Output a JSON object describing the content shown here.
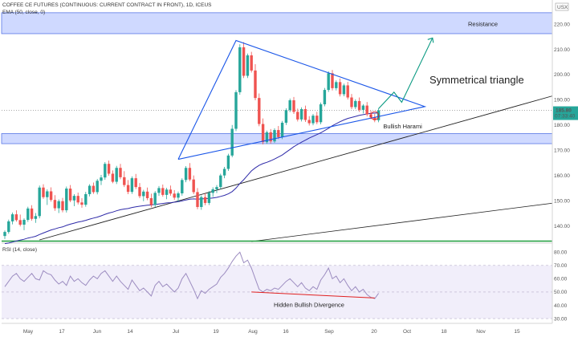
{
  "header": {
    "symbol_title": "COFFEE CE FUTURES (CONTINUOUS: CURRENT CONTRACT IN FRONT), 1D, ICEUS",
    "ema_label": "EMA (50, close, 0)",
    "rsi_label": "RSI (14, close)",
    "currency": "USX"
  },
  "annotations": {
    "resistance": "Resistance",
    "pattern": "Symmetrical triangle",
    "harami": "Bullish Harami",
    "divergence": "Hidden Bullish Divergence"
  },
  "price_badge": {
    "price": "185.80",
    "countdown": "07:33:40"
  },
  "colors": {
    "up": "#26a69a",
    "down": "#ef5350",
    "ema": "#2e2aa8",
    "trend": "#1a56e8",
    "zone": "#cfd9ff",
    "support": "#1e9e3c",
    "projection": "#089981",
    "rsi_line": "#9c8cc0",
    "rsi_band": "#f1eefa",
    "divergence": "#e02020"
  },
  "chart_data": [
    {
      "type": "candlestick",
      "title": "COFFEE CE FUTURES (CONTINUOUS: CURRENT CONTRACT IN FRONT), 1D, ICEUS",
      "ylabel": "USX",
      "y_ticks": [
        140,
        150,
        160,
        170,
        180,
        190,
        200,
        210,
        220
      ],
      "ylim": [
        133.5,
        227
      ],
      "x_ticks": [
        "May",
        "17",
        "Jun",
        "14",
        "Jul",
        "19",
        "Aug",
        "16",
        "Sep",
        "20",
        "Oct",
        "18",
        "Nov",
        "15"
      ],
      "last_price": 185.8,
      "candles": [
        {
          "o": 136.0,
          "h": 138.2,
          "l": 134.8,
          "c": 137.6
        },
        {
          "o": 137.6,
          "h": 142.5,
          "l": 136.9,
          "c": 141.8
        },
        {
          "o": 141.8,
          "h": 145.3,
          "l": 140.6,
          "c": 144.6
        },
        {
          "o": 144.6,
          "h": 146.2,
          "l": 141.7,
          "c": 142.3
        },
        {
          "o": 142.3,
          "h": 144.5,
          "l": 139.8,
          "c": 140.5
        },
        {
          "o": 140.5,
          "h": 143.0,
          "l": 138.3,
          "c": 142.4
        },
        {
          "o": 142.4,
          "h": 147.6,
          "l": 141.6,
          "c": 146.9
        },
        {
          "o": 146.9,
          "h": 148.2,
          "l": 142.1,
          "c": 142.8
        },
        {
          "o": 142.8,
          "h": 145.1,
          "l": 141.2,
          "c": 143.9
        },
        {
          "o": 143.9,
          "h": 156.0,
          "l": 143.0,
          "c": 155.2
        },
        {
          "o": 155.2,
          "h": 156.5,
          "l": 150.7,
          "c": 151.4
        },
        {
          "o": 151.4,
          "h": 154.5,
          "l": 148.3,
          "c": 153.7
        },
        {
          "o": 153.7,
          "h": 155.3,
          "l": 149.6,
          "c": 150.3
        },
        {
          "o": 150.3,
          "h": 152.2,
          "l": 146.0,
          "c": 147.0
        },
        {
          "o": 147.0,
          "h": 150.5,
          "l": 145.1,
          "c": 149.8
        },
        {
          "o": 149.8,
          "h": 151.1,
          "l": 145.4,
          "c": 146.2
        },
        {
          "o": 146.2,
          "h": 155.6,
          "l": 145.3,
          "c": 154.8
        },
        {
          "o": 154.8,
          "h": 156.2,
          "l": 149.4,
          "c": 150.1
        },
        {
          "o": 150.1,
          "h": 152.6,
          "l": 147.8,
          "c": 151.9
        },
        {
          "o": 151.9,
          "h": 153.2,
          "l": 148.5,
          "c": 149.3
        },
        {
          "o": 149.3,
          "h": 151.0,
          "l": 147.2,
          "c": 148.4
        },
        {
          "o": 148.4,
          "h": 153.5,
          "l": 147.6,
          "c": 152.6
        },
        {
          "o": 152.6,
          "h": 156.5,
          "l": 151.7,
          "c": 155.9
        },
        {
          "o": 155.9,
          "h": 157.2,
          "l": 152.7,
          "c": 153.4
        },
        {
          "o": 153.4,
          "h": 158.6,
          "l": 152.5,
          "c": 157.9
        },
        {
          "o": 157.9,
          "h": 160.2,
          "l": 156.2,
          "c": 159.2
        },
        {
          "o": 159.2,
          "h": 165.3,
          "l": 158.3,
          "c": 164.6
        },
        {
          "o": 164.6,
          "h": 165.9,
          "l": 159.9,
          "c": 160.7
        },
        {
          "o": 160.7,
          "h": 162.0,
          "l": 156.9,
          "c": 157.5
        },
        {
          "o": 157.5,
          "h": 163.8,
          "l": 156.6,
          "c": 163.0
        },
        {
          "o": 163.0,
          "h": 164.6,
          "l": 158.5,
          "c": 159.3
        },
        {
          "o": 159.3,
          "h": 161.7,
          "l": 155.4,
          "c": 156.2
        },
        {
          "o": 156.2,
          "h": 158.2,
          "l": 152.6,
          "c": 153.5
        },
        {
          "o": 153.5,
          "h": 159.6,
          "l": 152.7,
          "c": 158.9
        },
        {
          "o": 158.9,
          "h": 160.6,
          "l": 154.6,
          "c": 155.4
        },
        {
          "o": 155.4,
          "h": 157.0,
          "l": 151.0,
          "c": 151.8
        },
        {
          "o": 151.8,
          "h": 154.3,
          "l": 149.8,
          "c": 153.6
        },
        {
          "o": 153.6,
          "h": 155.2,
          "l": 150.2,
          "c": 151.0
        },
        {
          "o": 151.0,
          "h": 152.8,
          "l": 147.4,
          "c": 148.3
        },
        {
          "o": 148.3,
          "h": 153.8,
          "l": 147.5,
          "c": 153.1
        },
        {
          "o": 153.1,
          "h": 155.8,
          "l": 151.9,
          "c": 155.0
        },
        {
          "o": 155.0,
          "h": 156.4,
          "l": 151.6,
          "c": 152.3
        },
        {
          "o": 152.3,
          "h": 155.1,
          "l": 150.6,
          "c": 154.4
        },
        {
          "o": 154.4,
          "h": 156.0,
          "l": 152.0,
          "c": 152.8
        },
        {
          "o": 152.8,
          "h": 154.2,
          "l": 150.3,
          "c": 151.2
        },
        {
          "o": 151.2,
          "h": 153.6,
          "l": 149.6,
          "c": 152.9
        },
        {
          "o": 152.9,
          "h": 158.9,
          "l": 152.0,
          "c": 158.2
        },
        {
          "o": 158.2,
          "h": 163.7,
          "l": 157.3,
          "c": 163.0
        },
        {
          "o": 163.0,
          "h": 164.9,
          "l": 157.7,
          "c": 158.4
        },
        {
          "o": 158.4,
          "h": 160.0,
          "l": 152.6,
          "c": 153.4
        },
        {
          "o": 153.4,
          "h": 155.0,
          "l": 146.6,
          "c": 147.5
        },
        {
          "o": 147.5,
          "h": 152.1,
          "l": 146.4,
          "c": 151.4
        },
        {
          "o": 151.4,
          "h": 152.9,
          "l": 148.2,
          "c": 149.1
        },
        {
          "o": 149.1,
          "h": 153.8,
          "l": 148.3,
          "c": 153.1
        },
        {
          "o": 153.1,
          "h": 155.3,
          "l": 151.5,
          "c": 154.5
        },
        {
          "o": 154.5,
          "h": 156.2,
          "l": 153.0,
          "c": 155.4
        },
        {
          "o": 155.4,
          "h": 160.7,
          "l": 154.6,
          "c": 160.0
        },
        {
          "o": 160.0,
          "h": 163.4,
          "l": 158.9,
          "c": 162.6
        },
        {
          "o": 162.6,
          "h": 168.6,
          "l": 161.8,
          "c": 167.9
        },
        {
          "o": 167.9,
          "h": 180.0,
          "l": 167.2,
          "c": 178.5
        },
        {
          "o": 178.5,
          "h": 193.8,
          "l": 177.6,
          "c": 193.0
        },
        {
          "o": 193.0,
          "h": 212.0,
          "l": 192.0,
          "c": 210.8
        },
        {
          "o": 210.8,
          "h": 212.8,
          "l": 198.6,
          "c": 199.5
        },
        {
          "o": 199.5,
          "h": 208.3,
          "l": 198.6,
          "c": 207.6
        },
        {
          "o": 207.6,
          "h": 209.0,
          "l": 200.8,
          "c": 201.6
        },
        {
          "o": 201.6,
          "h": 204.1,
          "l": 189.8,
          "c": 190.7
        },
        {
          "o": 190.7,
          "h": 192.5,
          "l": 179.5,
          "c": 180.4
        },
        {
          "o": 180.4,
          "h": 182.6,
          "l": 172.3,
          "c": 173.2
        },
        {
          "o": 173.2,
          "h": 177.8,
          "l": 172.5,
          "c": 177.1
        },
        {
          "o": 177.1,
          "h": 178.4,
          "l": 172.6,
          "c": 173.5
        },
        {
          "o": 173.5,
          "h": 178.7,
          "l": 172.9,
          "c": 178.0
        },
        {
          "o": 178.0,
          "h": 179.6,
          "l": 174.4,
          "c": 175.2
        },
        {
          "o": 175.2,
          "h": 181.6,
          "l": 174.4,
          "c": 180.9
        },
        {
          "o": 180.9,
          "h": 186.6,
          "l": 180.0,
          "c": 185.9
        },
        {
          "o": 185.9,
          "h": 190.5,
          "l": 185.1,
          "c": 189.8
        },
        {
          "o": 189.8,
          "h": 191.1,
          "l": 184.4,
          "c": 185.2
        },
        {
          "o": 185.2,
          "h": 186.5,
          "l": 181.4,
          "c": 182.2
        },
        {
          "o": 182.2,
          "h": 187.0,
          "l": 181.4,
          "c": 186.3
        },
        {
          "o": 186.3,
          "h": 187.7,
          "l": 181.2,
          "c": 182.0
        },
        {
          "o": 182.0,
          "h": 183.5,
          "l": 179.8,
          "c": 180.7
        },
        {
          "o": 180.7,
          "h": 184.4,
          "l": 179.9,
          "c": 183.7
        },
        {
          "o": 183.7,
          "h": 185.2,
          "l": 180.3,
          "c": 181.1
        },
        {
          "o": 181.1,
          "h": 188.9,
          "l": 180.3,
          "c": 188.2
        },
        {
          "o": 188.2,
          "h": 194.7,
          "l": 187.4,
          "c": 193.9
        },
        {
          "o": 193.9,
          "h": 201.3,
          "l": 193.1,
          "c": 200.5
        },
        {
          "o": 200.5,
          "h": 201.8,
          "l": 193.7,
          "c": 194.6
        },
        {
          "o": 194.6,
          "h": 197.7,
          "l": 193.7,
          "c": 197.0
        },
        {
          "o": 197.0,
          "h": 198.4,
          "l": 191.3,
          "c": 192.2
        },
        {
          "o": 192.2,
          "h": 196.4,
          "l": 191.4,
          "c": 195.7
        },
        {
          "o": 195.7,
          "h": 197.1,
          "l": 190.1,
          "c": 190.9
        },
        {
          "o": 190.9,
          "h": 192.3,
          "l": 186.3,
          "c": 187.1
        },
        {
          "o": 187.1,
          "h": 190.2,
          "l": 186.3,
          "c": 189.5
        },
        {
          "o": 189.5,
          "h": 190.9,
          "l": 185.2,
          "c": 186.0
        },
        {
          "o": 186.0,
          "h": 188.3,
          "l": 184.6,
          "c": 187.7
        },
        {
          "o": 187.7,
          "h": 189.1,
          "l": 183.4,
          "c": 184.2
        },
        {
          "o": 184.2,
          "h": 185.7,
          "l": 182.3,
          "c": 183.0
        },
        {
          "o": 183.0,
          "h": 184.4,
          "l": 181.1,
          "c": 181.9
        },
        {
          "o": 181.9,
          "h": 186.6,
          "l": 181.1,
          "c": 185.8
        }
      ]
    },
    {
      "type": "line",
      "title": "EMA (50, close, 0)",
      "values": [
        133.0,
        133.2,
        133.6,
        134.0,
        134.4,
        134.7,
        135.2,
        135.5,
        135.9,
        136.6,
        137.2,
        137.8,
        138.4,
        138.8,
        139.3,
        139.6,
        140.2,
        140.7,
        141.1,
        141.5,
        141.8,
        142.2,
        142.7,
        143.1,
        143.5,
        144.0,
        144.6,
        145.1,
        145.5,
        146.0,
        146.4,
        146.7,
        146.9,
        147.3,
        147.6,
        147.8,
        148.0,
        148.2,
        148.3,
        148.5,
        148.7,
        148.9,
        149.1,
        149.2,
        149.4,
        149.6,
        149.9,
        150.3,
        150.6,
        150.7,
        150.6,
        150.7,
        150.8,
        150.9,
        151.1,
        151.3,
        151.7,
        152.1,
        152.7,
        153.6,
        155.0,
        156.8,
        158.3,
        160.1,
        161.8,
        163.0,
        164.0,
        164.7,
        165.2,
        165.8,
        166.5,
        167.3,
        168.1,
        169.2,
        170.3,
        171.4,
        172.3,
        173.2,
        174.0,
        174.8,
        175.5,
        176.2,
        176.9,
        177.8,
        178.7,
        179.7,
        180.5,
        181.3,
        182.0,
        182.6,
        183.0,
        183.4,
        183.8,
        184.1,
        184.4,
        184.6,
        184.7,
        184.8
      ]
    },
    {
      "type": "line",
      "title": "RSI (14, close)",
      "y_ticks": [
        30,
        40,
        50,
        60,
        70,
        80
      ],
      "ylim": [
        27,
        85
      ],
      "bands": [
        70,
        50,
        30
      ],
      "values": [
        54,
        58,
        62,
        64,
        60,
        58,
        61,
        64,
        60,
        59,
        66,
        64,
        63,
        59,
        56,
        58,
        55,
        62,
        58,
        60,
        57,
        55,
        59,
        62,
        60,
        64,
        66,
        62,
        58,
        62,
        58,
        55,
        52,
        59,
        55,
        51,
        53,
        50,
        47,
        55,
        58,
        54,
        56,
        53,
        50,
        53,
        60,
        64,
        58,
        52,
        45,
        51,
        49,
        52,
        54,
        56,
        61,
        64,
        68,
        73,
        77,
        80,
        72,
        74,
        68,
        60,
        52,
        50,
        52,
        51,
        53,
        52,
        55,
        58,
        60,
        57,
        54,
        57,
        53,
        51,
        54,
        52,
        59,
        63,
        68,
        60,
        62,
        57,
        60,
        55,
        51,
        54,
        50,
        52,
        48,
        46,
        45,
        49
      ]
    }
  ]
}
